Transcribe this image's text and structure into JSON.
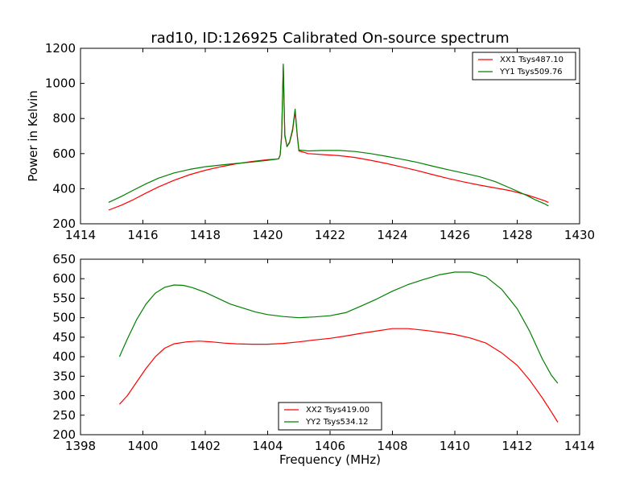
{
  "chart_data": [
    {
      "type": "line",
      "title": "rad10, ID:126925 Calibrated On-source spectrum",
      "xlabel": "",
      "ylabel": "Power in Kelvin",
      "xlim": [
        1414,
        1430
      ],
      "ylim": [
        200,
        1200
      ],
      "xticks": [
        1414,
        1416,
        1418,
        1420,
        1422,
        1424,
        1426,
        1428,
        1430
      ],
      "yticks": [
        200,
        400,
        600,
        800,
        1000,
        1200
      ],
      "legend_position": "top-right",
      "series": [
        {
          "name": "XX1 Tsys487.10",
          "color": "#ff0000",
          "points": [
            [
              1414.9,
              278
            ],
            [
              1415.3,
              305
            ],
            [
              1415.7,
              338
            ],
            [
              1416.1,
              375
            ],
            [
              1416.5,
              410
            ],
            [
              1417.0,
              448
            ],
            [
              1417.5,
              480
            ],
            [
              1418.0,
              505
            ],
            [
              1418.5,
              525
            ],
            [
              1419.0,
              542
            ],
            [
              1419.5,
              555
            ],
            [
              1420.0,
              565
            ],
            [
              1420.2,
              568
            ],
            [
              1420.35,
              570
            ],
            [
              1420.4,
              590
            ],
            [
              1420.45,
              700
            ],
            [
              1420.5,
              1100
            ],
            [
              1420.55,
              700
            ],
            [
              1420.62,
              640
            ],
            [
              1420.7,
              660
            ],
            [
              1420.8,
              730
            ],
            [
              1420.88,
              840
            ],
            [
              1420.95,
              700
            ],
            [
              1421.0,
              615
            ],
            [
              1421.3,
              600
            ],
            [
              1421.8,
              594
            ],
            [
              1422.3,
              588
            ],
            [
              1422.8,
              578
            ],
            [
              1423.3,
              562
            ],
            [
              1423.8,
              544
            ],
            [
              1424.3,
              524
            ],
            [
              1424.8,
              503
            ],
            [
              1425.3,
              480
            ],
            [
              1425.8,
              458
            ],
            [
              1426.3,
              438
            ],
            [
              1426.8,
              420
            ],
            [
              1427.3,
              404
            ],
            [
              1427.8,
              388
            ],
            [
              1428.3,
              365
            ],
            [
              1428.6,
              348
            ],
            [
              1428.9,
              330
            ],
            [
              1429.0,
              322
            ]
          ]
        },
        {
          "name": "YY1 Tsys509.76",
          "color": "#008000",
          "points": [
            [
              1414.9,
              322
            ],
            [
              1415.3,
              355
            ],
            [
              1415.7,
              392
            ],
            [
              1416.1,
              428
            ],
            [
              1416.5,
              460
            ],
            [
              1417.0,
              490
            ],
            [
              1417.5,
              510
            ],
            [
              1418.0,
              525
            ],
            [
              1418.5,
              535
            ],
            [
              1419.0,
              544
            ],
            [
              1419.5,
              552
            ],
            [
              1420.0,
              562
            ],
            [
              1420.2,
              566
            ],
            [
              1420.35,
              570
            ],
            [
              1420.4,
              592
            ],
            [
              1420.45,
              710
            ],
            [
              1420.5,
              1110
            ],
            [
              1420.55,
              710
            ],
            [
              1420.62,
              640
            ],
            [
              1420.7,
              665
            ],
            [
              1420.8,
              740
            ],
            [
              1420.88,
              853
            ],
            [
              1420.95,
              705
            ],
            [
              1421.0,
              620
            ],
            [
              1421.3,
              615
            ],
            [
              1421.8,
              618
            ],
            [
              1422.3,
              618
            ],
            [
              1422.8,
              612
            ],
            [
              1423.3,
              600
            ],
            [
              1423.8,
              585
            ],
            [
              1424.3,
              568
            ],
            [
              1424.8,
              550
            ],
            [
              1425.3,
              528
            ],
            [
              1425.8,
              508
            ],
            [
              1426.3,
              488
            ],
            [
              1426.8,
              468
            ],
            [
              1427.3,
              440
            ],
            [
              1427.8,
              402
            ],
            [
              1428.3,
              362
            ],
            [
              1428.6,
              335
            ],
            [
              1428.9,
              312
            ],
            [
              1429.0,
              302
            ]
          ]
        }
      ]
    },
    {
      "type": "line",
      "title": "",
      "xlabel": "Frequency (MHz)",
      "ylabel": "",
      "xlim": [
        1398,
        1414
      ],
      "ylim": [
        200,
        650
      ],
      "xticks": [
        1398,
        1400,
        1402,
        1404,
        1406,
        1408,
        1410,
        1412,
        1414
      ],
      "yticks": [
        200,
        250,
        300,
        350,
        400,
        450,
        500,
        550,
        600,
        650
      ],
      "legend_position": "bottom-center",
      "series": [
        {
          "name": "XX2 Tsys419.00",
          "color": "#ff0000",
          "points": [
            [
              1399.25,
              278
            ],
            [
              1399.5,
              300
            ],
            [
              1399.8,
              335
            ],
            [
              1400.1,
              370
            ],
            [
              1400.4,
              400
            ],
            [
              1400.7,
              422
            ],
            [
              1401.0,
              433
            ],
            [
              1401.4,
              438
            ],
            [
              1401.8,
              440
            ],
            [
              1402.2,
              438
            ],
            [
              1402.6,
              435
            ],
            [
              1403.0,
              433
            ],
            [
              1403.5,
              432
            ],
            [
              1404.0,
              432
            ],
            [
              1404.5,
              434
            ],
            [
              1405.0,
              438
            ],
            [
              1405.5,
              443
            ],
            [
              1406.0,
              447
            ],
            [
              1406.5,
              453
            ],
            [
              1407.0,
              460
            ],
            [
              1407.5,
              466
            ],
            [
              1408.0,
              472
            ],
            [
              1408.5,
              472
            ],
            [
              1409.0,
              468
            ],
            [
              1409.5,
              463
            ],
            [
              1410.0,
              457
            ],
            [
              1410.5,
              448
            ],
            [
              1411.0,
              435
            ],
            [
              1411.5,
              410
            ],
            [
              1412.0,
              378
            ],
            [
              1412.4,
              340
            ],
            [
              1412.8,
              295
            ],
            [
              1413.1,
              258
            ],
            [
              1413.3,
              232
            ]
          ]
        },
        {
          "name": "YY2 Tsys534.12",
          "color": "#008000",
          "points": [
            [
              1399.25,
              400
            ],
            [
              1399.5,
              445
            ],
            [
              1399.8,
              495
            ],
            [
              1400.1,
              535
            ],
            [
              1400.4,
              563
            ],
            [
              1400.7,
              578
            ],
            [
              1401.0,
              584
            ],
            [
              1401.3,
              583
            ],
            [
              1401.6,
              577
            ],
            [
              1402.0,
              565
            ],
            [
              1402.4,
              550
            ],
            [
              1402.8,
              535
            ],
            [
              1403.2,
              525
            ],
            [
              1403.6,
              515
            ],
            [
              1404.0,
              508
            ],
            [
              1404.5,
              503
            ],
            [
              1405.0,
              500
            ],
            [
              1405.5,
              502
            ],
            [
              1406.0,
              505
            ],
            [
              1406.5,
              513
            ],
            [
              1407.0,
              530
            ],
            [
              1407.5,
              548
            ],
            [
              1408.0,
              568
            ],
            [
              1408.5,
              585
            ],
            [
              1409.0,
              598
            ],
            [
              1409.5,
              610
            ],
            [
              1410.0,
              617
            ],
            [
              1410.5,
              617
            ],
            [
              1411.0,
              605
            ],
            [
              1411.5,
              573
            ],
            [
              1412.0,
              523
            ],
            [
              1412.4,
              465
            ],
            [
              1412.8,
              395
            ],
            [
              1413.1,
              352
            ],
            [
              1413.3,
              332
            ]
          ]
        }
      ]
    }
  ]
}
